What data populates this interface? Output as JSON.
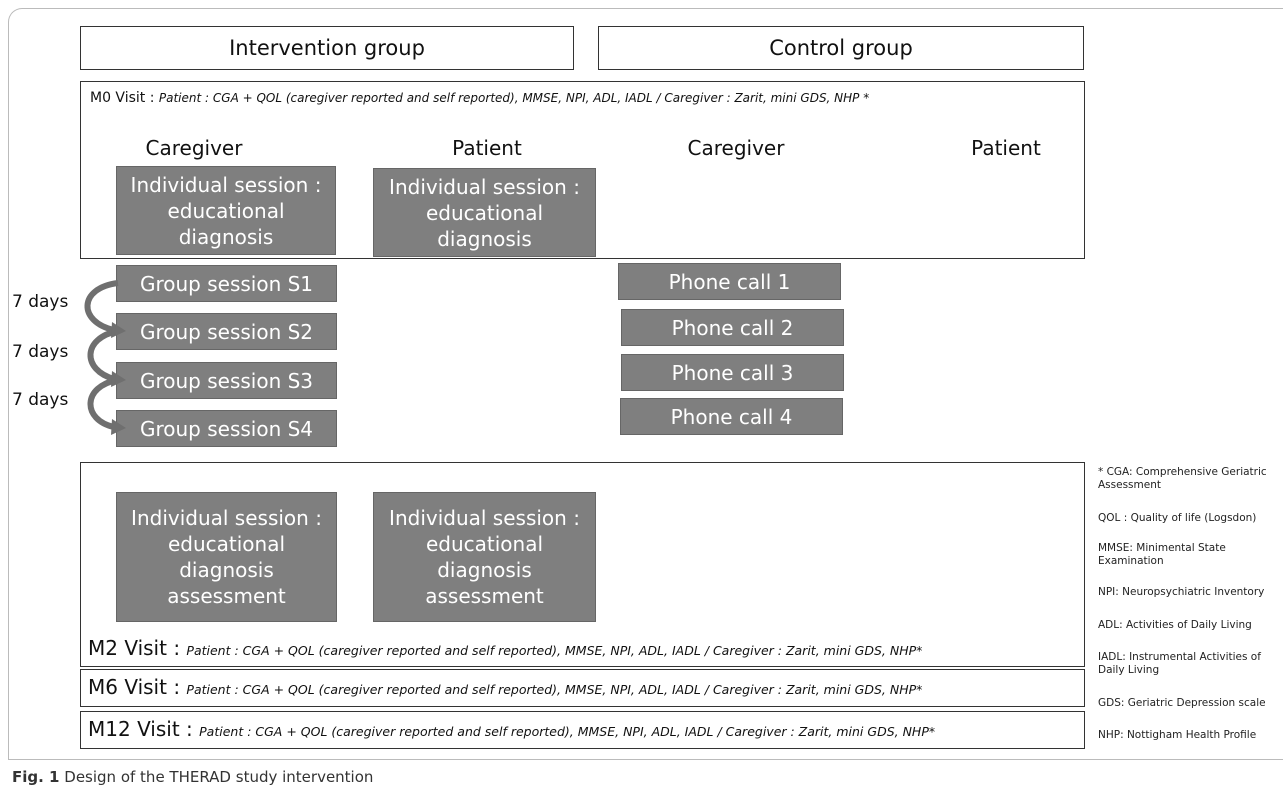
{
  "groups": [
    "Intervention group",
    "Control group"
  ],
  "m0": {
    "label": "M0 Visit :",
    "detail": "Patient : CGA + QOL (caregiver reported and self reported), MMSE, NPI, ADL, IADL  / Caregiver : Zarit, mini GDS, NHP *"
  },
  "columns": [
    "Caregiver",
    "Patient",
    "Caregiver",
    "Patient"
  ],
  "individual_sessions": [
    "Individual session : educational diagnosis",
    "Individual session : educational diagnosis"
  ],
  "group_sessions": [
    "Group session S1",
    "Group session S2",
    "Group session S3",
    "Group session S4"
  ],
  "intervals": [
    "7 days",
    "7 days",
    "7 days"
  ],
  "phone_calls": [
    "Phone call 1",
    "Phone call 2",
    "Phone call 3",
    "Phone call 4"
  ],
  "assessment_sessions": [
    "Individual session : educational diagnosis assessment",
    "Individual session : educational diagnosis assessment"
  ],
  "visits": [
    {
      "label": "M2 Visit :",
      "detail": "Patient : CGA + QOL (caregiver reported and self reported), MMSE, NPI, ADL, IADL  / Caregiver : Zarit, mini GDS, NHP*"
    },
    {
      "label": "M6 Visit :",
      "detail": "Patient : CGA + QOL (caregiver reported and self reported), MMSE, NPI, ADL, IADL  / Caregiver : Zarit, mini GDS, NHP*"
    },
    {
      "label": "M12 Visit :",
      "detail": "Patient : CGA + QOL (caregiver reported and self reported), MMSE, NPI, ADL, IADL  / Caregiver : Zarit, mini GDS, NHP*"
    }
  ],
  "notes": [
    "* CGA: Comprehensive Geriatric Assessment",
    "QOL : Quality of life (Logsdon)",
    "MMSE: Minimental State Examination",
    "NPI: Neuropsychiatric Inventory",
    "ADL: Activities of Daily Living",
    "IADL: Instrumental Activities of Daily Living",
    "GDS: Geriatric Depression scale",
    "NHP: Nottigham Health Profile"
  ],
  "caption": {
    "label": "Fig. 1",
    "text": "Design of the THERAD study intervention"
  }
}
